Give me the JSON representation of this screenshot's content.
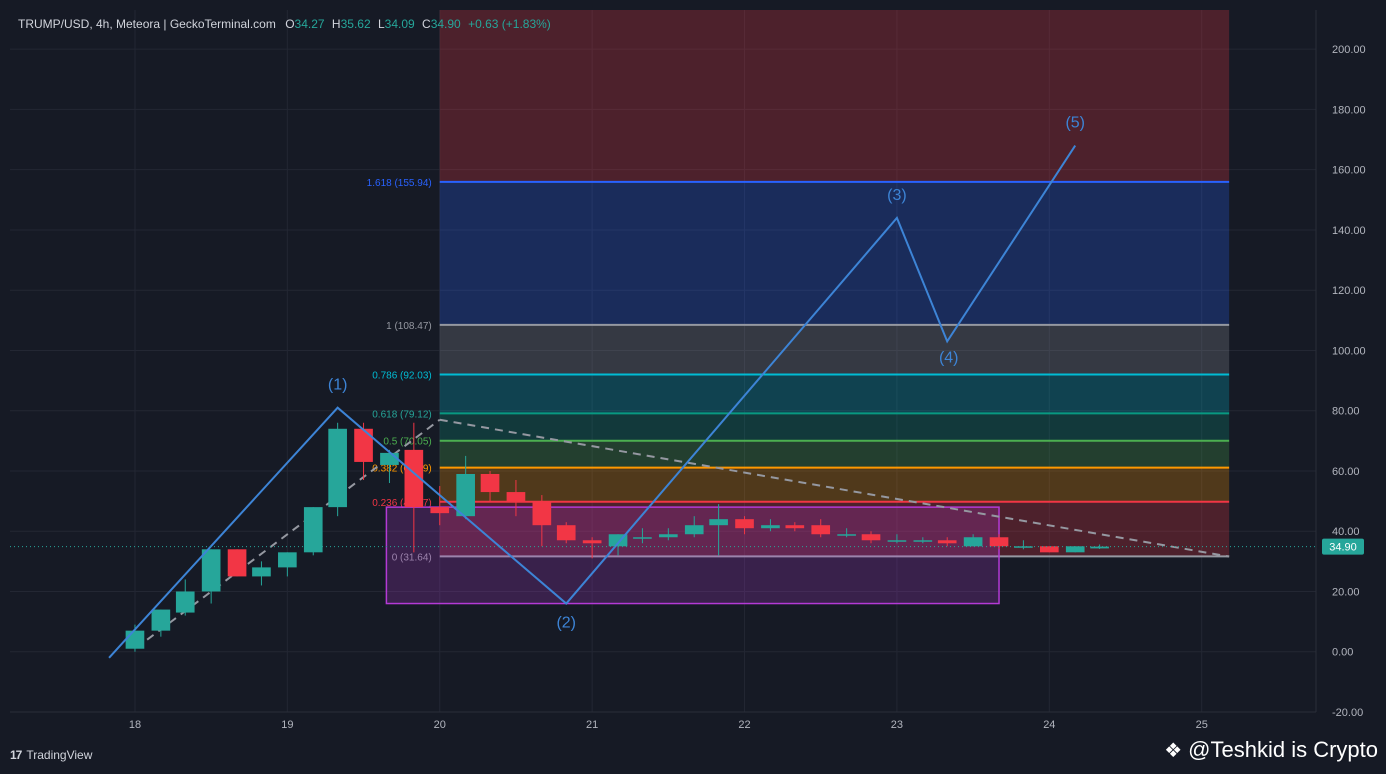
{
  "header": {
    "symbol": "TRUMP/USD, 4h, Meteora | GeckoTerminal.com",
    "o_label": "O",
    "o_value": "34.27",
    "h_label": "H",
    "h_value": "35.62",
    "l_label": "L",
    "l_value": "34.09",
    "c_label": "C",
    "c_value": "34.90",
    "change": "+0.63 (+1.83%)"
  },
  "branding": {
    "tv_mark": "17",
    "tv_name": "TradingView"
  },
  "watermark": {
    "icon": "binance-diamond-icon",
    "text": "@Teshkid is Crypto"
  },
  "colors": {
    "bg": "#161a25",
    "up": "#26a69a",
    "down": "#f23645",
    "wave": "#3d84d6",
    "box": "#b43ad6"
  },
  "chart_data": {
    "type": "candlestick",
    "x_ticks": [
      "18",
      "19",
      "20",
      "21",
      "22",
      "23",
      "24",
      "25"
    ],
    "y_ticks": [
      "200.00",
      "180.00",
      "160.00",
      "140.00",
      "120.00",
      "100.00",
      "80.00",
      "60.00",
      "40.00",
      "20.00",
      "0.00",
      "-20.00"
    ],
    "ylim": [
      -20,
      213
    ],
    "xlim": [
      17.18,
      25.75
    ],
    "last_price": "34.90",
    "candles": [
      {
        "t": 18.0,
        "o": 1,
        "h": 9,
        "l": 0,
        "c": 7
      },
      {
        "t": 18.17,
        "o": 7,
        "h": 14,
        "l": 5,
        "c": 14
      },
      {
        "t": 18.33,
        "o": 13,
        "h": 24,
        "l": 12,
        "c": 20
      },
      {
        "t": 18.5,
        "o": 20,
        "h": 34,
        "l": 16,
        "c": 34
      },
      {
        "t": 18.67,
        "o": 34,
        "h": 34,
        "l": 25,
        "c": 25
      },
      {
        "t": 18.83,
        "o": 25,
        "h": 30,
        "l": 22,
        "c": 28
      },
      {
        "t": 19.0,
        "o": 28,
        "h": 33,
        "l": 25,
        "c": 33
      },
      {
        "t": 19.17,
        "o": 33,
        "h": 48,
        "l": 32,
        "c": 48
      },
      {
        "t": 19.33,
        "o": 48,
        "h": 76,
        "l": 45,
        "c": 74
      },
      {
        "t": 19.5,
        "o": 74,
        "h": 76,
        "l": 57,
        "c": 63
      },
      {
        "t": 19.67,
        "o": 62,
        "h": 67,
        "l": 56,
        "c": 66
      },
      {
        "t": 19.83,
        "o": 67,
        "h": 76,
        "l": 33,
        "c": 48
      },
      {
        "t": 20.0,
        "o": 48,
        "h": 55,
        "l": 42,
        "c": 46
      },
      {
        "t": 20.17,
        "o": 45,
        "h": 65,
        "l": 44,
        "c": 59
      },
      {
        "t": 20.33,
        "o": 59,
        "h": 60,
        "l": 50,
        "c": 53
      },
      {
        "t": 20.5,
        "o": 53,
        "h": 57,
        "l": 45,
        "c": 50
      },
      {
        "t": 20.67,
        "o": 50,
        "h": 52,
        "l": 35,
        "c": 42
      },
      {
        "t": 20.83,
        "o": 42,
        "h": 43,
        "l": 36,
        "c": 37
      },
      {
        "t": 21.0,
        "o": 37,
        "h": 38,
        "l": 31,
        "c": 36
      },
      {
        "t": 21.17,
        "o": 35,
        "h": 39,
        "l": 32,
        "c": 39
      },
      {
        "t": 21.33,
        "o": 38,
        "h": 41,
        "l": 36,
        "c": 38
      },
      {
        "t": 21.5,
        "o": 38,
        "h": 41,
        "l": 37,
        "c": 39
      },
      {
        "t": 21.67,
        "o": 39,
        "h": 45,
        "l": 38,
        "c": 42
      },
      {
        "t": 21.83,
        "o": 42,
        "h": 49,
        "l": 32,
        "c": 44
      },
      {
        "t": 22.0,
        "o": 44,
        "h": 45,
        "l": 39,
        "c": 41
      },
      {
        "t": 22.17,
        "o": 41,
        "h": 44,
        "l": 40,
        "c": 42
      },
      {
        "t": 22.33,
        "o": 42,
        "h": 43,
        "l": 40,
        "c": 41
      },
      {
        "t": 22.5,
        "o": 42,
        "h": 44,
        "l": 38,
        "c": 39
      },
      {
        "t": 22.67,
        "o": 39,
        "h": 41,
        "l": 38,
        "c": 39
      },
      {
        "t": 22.83,
        "o": 39,
        "h": 40,
        "l": 36,
        "c": 37
      },
      {
        "t": 23.0,
        "o": 37,
        "h": 39,
        "l": 36,
        "c": 37
      },
      {
        "t": 23.17,
        "o": 37,
        "h": 38,
        "l": 36,
        "c": 37
      },
      {
        "t": 23.33,
        "o": 37,
        "h": 38,
        "l": 35,
        "c": 36
      },
      {
        "t": 23.5,
        "o": 35,
        "h": 39,
        "l": 35,
        "c": 38
      },
      {
        "t": 23.67,
        "o": 38,
        "h": 39,
        "l": 34,
        "c": 35
      },
      {
        "t": 23.83,
        "o": 35,
        "h": 37,
        "l": 34,
        "c": 35
      },
      {
        "t": 24.0,
        "o": 35,
        "h": 35,
        "l": 33,
        "c": 33
      },
      {
        "t": 24.17,
        "o": 33,
        "h": 35,
        "l": 33,
        "c": 35
      },
      {
        "t": 24.33,
        "o": 34.3,
        "h": 35.6,
        "l": 34.1,
        "c": 34.9
      }
    ],
    "fib": {
      "x_start": 20.0,
      "x_end": 25.18,
      "levels": [
        {
          "label": "0 (31.64)",
          "value": 31.64,
          "color": "#9598a1",
          "label_color": "#9598a1"
        },
        {
          "label": "0.236 (49.77)",
          "value": 49.77,
          "color": "#f23645",
          "label_color": "#f23645"
        },
        {
          "label": "0.382 (61.09)",
          "value": 61.09,
          "color": "#ff9800",
          "label_color": "#ff9800"
        },
        {
          "label": "0.5 (70.05)",
          "value": 70.05,
          "color": "#4caf50",
          "label_color": "#4caf50"
        },
        {
          "label": "0.618 (79.12)",
          "value": 79.12,
          "color": "#089981",
          "label_color": "#26a69a"
        },
        {
          "label": "0.786 (92.03)",
          "value": 92.03,
          "color": "#00bcd4",
          "label_color": "#00bcd4"
        },
        {
          "label": "1 (108.47)",
          "value": 108.47,
          "color": "#9598a1",
          "label_color": "#9598a1"
        },
        {
          "label": "1.618 (155.94)",
          "value": 155.94,
          "color": "#2962ff",
          "label_color": "#2962ff"
        },
        {
          "label": "",
          "value": 213,
          "color": "#f23645",
          "label_color": "#f23645"
        }
      ]
    },
    "wave_path": [
      {
        "t": 17.83,
        "v": -2
      },
      {
        "t": 19.33,
        "v": 81
      },
      {
        "t": 20.83,
        "v": 16
      },
      {
        "t": 23.0,
        "v": 144
      },
      {
        "t": 23.33,
        "v": 103
      },
      {
        "t": 24.17,
        "v": 168
      }
    ],
    "wave_labels": [
      {
        "text": "(1)",
        "t": 19.33,
        "v": 87
      },
      {
        "text": "(2)",
        "t": 20.83,
        "v": 8
      },
      {
        "text": "(3)",
        "t": 23.0,
        "v": 150
      },
      {
        "text": "(4)",
        "t": 23.34,
        "v": 96
      },
      {
        "text": "(5)",
        "t": 24.17,
        "v": 174
      }
    ],
    "trend_up": [
      {
        "t": 18.08,
        "v": 4
      },
      {
        "t": 20.0,
        "v": 77
      }
    ],
    "trend_down": [
      {
        "t": 20.0,
        "v": 77
      },
      {
        "t": 25.18,
        "v": 31.6
      }
    ],
    "range_box": {
      "t0": 19.65,
      "t1": 23.67,
      "v0": 16,
      "v1": 48
    }
  }
}
